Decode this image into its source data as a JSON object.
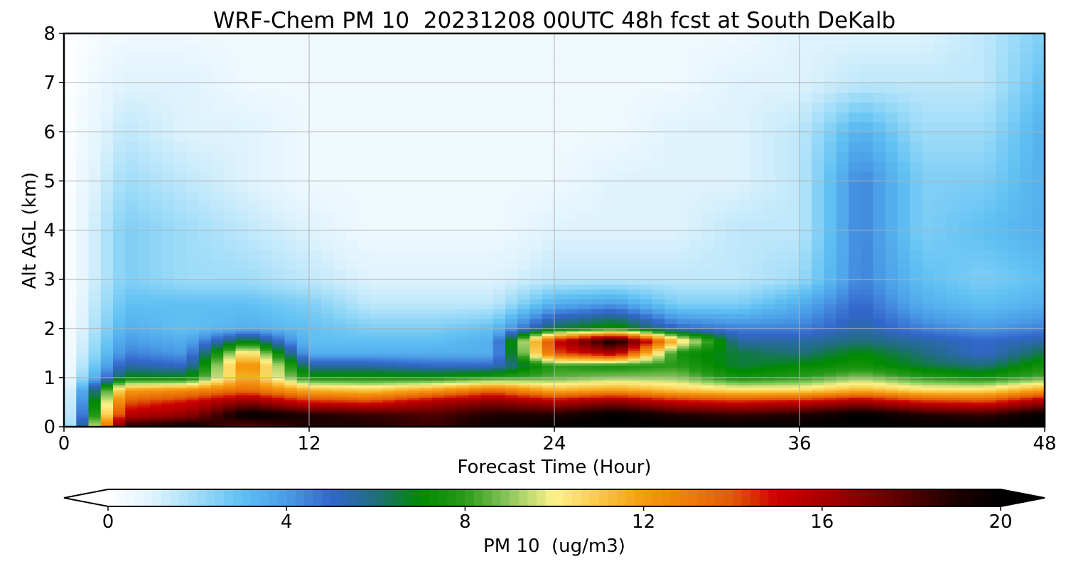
{
  "chart_data": {
    "type": "heatmap",
    "title": "WRF-Chem PM 10  20231208 00UTC 48h fcst at South DeKalb",
    "xlabel": "Forecast Time (Hour)",
    "ylabel": "Alt AGL (km)",
    "xlim": [
      0,
      48
    ],
    "ylim": [
      0,
      8
    ],
    "xticks": [
      0,
      12,
      24,
      36,
      48
    ],
    "yticks": [
      0,
      1,
      2,
      3,
      4,
      5,
      6,
      7,
      8
    ],
    "grid": true,
    "colorbar": {
      "label": "PM 10  (ug/m3)",
      "min": 0,
      "max": 20,
      "ticks": [
        0,
        4,
        8,
        12,
        16,
        20
      ],
      "extend": "both",
      "stops": [
        {
          "v": 0,
          "c": "#ffffff"
        },
        {
          "v": 1,
          "c": "#dff3fd"
        },
        {
          "v": 2,
          "c": "#9edcf8"
        },
        {
          "v": 3,
          "c": "#5fc0f3"
        },
        {
          "v": 4,
          "c": "#4a9ce6"
        },
        {
          "v": 5,
          "c": "#3366cc"
        },
        {
          "v": 6,
          "c": "#1f6e7c"
        },
        {
          "v": 7,
          "c": "#008a00"
        },
        {
          "v": 8,
          "c": "#2a9a1a"
        },
        {
          "v": 9,
          "c": "#8ec85e"
        },
        {
          "v": 10,
          "c": "#fff38a"
        },
        {
          "v": 11,
          "c": "#f9c84a"
        },
        {
          "v": 12,
          "c": "#f59b0d"
        },
        {
          "v": 13,
          "c": "#ef7b0a"
        },
        {
          "v": 14,
          "c": "#e05a06"
        },
        {
          "v": 15,
          "c": "#cc0000"
        },
        {
          "v": 16,
          "c": "#aa0000"
        },
        {
          "v": 17,
          "c": "#820000"
        },
        {
          "v": 18,
          "c": "#500000"
        },
        {
          "v": 19,
          "c": "#1c0000"
        },
        {
          "v": 20,
          "c": "#000000"
        }
      ]
    },
    "x": [
      0,
      3,
      6,
      9,
      12,
      15,
      18,
      21,
      24,
      27,
      30,
      33,
      36,
      39,
      42,
      45,
      48
    ],
    "y": [
      0,
      0.25,
      0.5,
      0.75,
      1,
      1.25,
      1.5,
      1.75,
      2,
      2.5,
      3,
      4,
      5,
      6,
      7,
      8
    ],
    "values": [
      [
        0,
        19,
        20,
        17.5,
        19,
        19,
        18.5,
        19.5,
        20,
        20,
        20,
        20,
        20,
        20,
        20,
        20,
        20
      ],
      [
        0,
        15.5,
        16.5,
        20,
        19,
        18.5,
        18,
        19,
        19,
        20,
        19,
        18.5,
        19,
        20,
        19,
        18.5,
        20
      ],
      [
        0,
        14,
        15,
        17,
        15,
        14.5,
        16,
        17,
        16,
        17,
        15.5,
        15,
        15.5,
        16.5,
        15,
        14.5,
        16.5
      ],
      [
        0,
        12,
        12.5,
        13.5,
        11.5,
        11,
        12,
        13.5,
        11.5,
        12,
        11,
        10.5,
        10.5,
        11.5,
        10.5,
        10.5,
        12
      ],
      [
        0,
        7,
        7,
        12,
        7.5,
        7.5,
        7.5,
        8,
        8.5,
        9,
        9,
        7.5,
        8,
        9,
        8,
        7.5,
        8.5
      ],
      [
        0,
        5.5,
        5,
        13,
        5.5,
        5.5,
        5,
        5,
        8,
        7.5,
        8,
        6.5,
        7,
        7.5,
        6.5,
        6,
        7.5
      ],
      [
        0,
        4.5,
        4,
        11,
        3.5,
        3.5,
        3.5,
        3.5,
        14,
        16,
        7.5,
        6.5,
        6,
        7,
        6,
        5,
        6.5
      ],
      [
        0,
        4,
        3.5,
        7,
        3,
        3,
        3,
        3.5,
        15,
        20,
        11,
        5.5,
        5.5,
        6,
        5.5,
        5,
        5.5
      ],
      [
        0,
        3.5,
        3,
        3.5,
        3,
        2.5,
        2.5,
        3,
        6.5,
        7.5,
        5,
        4.5,
        4.5,
        5.5,
        4.5,
        4,
        4.5
      ],
      [
        0,
        3,
        3,
        3,
        2.5,
        1.5,
        1.5,
        1.5,
        3.5,
        4,
        2.5,
        2.5,
        3.5,
        5,
        3.5,
        3,
        3.5
      ],
      [
        0,
        2.5,
        2,
        2,
        1.5,
        1,
        1,
        1,
        1.5,
        1.5,
        1.5,
        1.5,
        2,
        4.5,
        3,
        2.5,
        3
      ],
      [
        0,
        2.5,
        2,
        1.5,
        1,
        0.5,
        0.5,
        0.5,
        1,
        1,
        1,
        1.5,
        1.5,
        4.5,
        2.5,
        3,
        3.5
      ],
      [
        0,
        2,
        1.5,
        1,
        0.5,
        0.5,
        0.5,
        0.5,
        0.5,
        1,
        1,
        1,
        1.5,
        4.5,
        2.5,
        2.5,
        3.5
      ],
      [
        0,
        1.5,
        1,
        1,
        0.5,
        0.5,
        0.5,
        0.5,
        0.5,
        0.5,
        1,
        1,
        1.5,
        3.5,
        2,
        2,
        3.5
      ],
      [
        0,
        1,
        1,
        0.5,
        0.5,
        0.5,
        0.5,
        0.5,
        0.5,
        0.5,
        0.5,
        1,
        1,
        1.5,
        1.5,
        1.5,
        3
      ],
      [
        0,
        0.5,
        0.5,
        0.5,
        0.5,
        0.5,
        0.5,
        0.5,
        0.5,
        0.5,
        0.5,
        0.5,
        1,
        1,
        1,
        1.5,
        2.5
      ]
    ]
  }
}
